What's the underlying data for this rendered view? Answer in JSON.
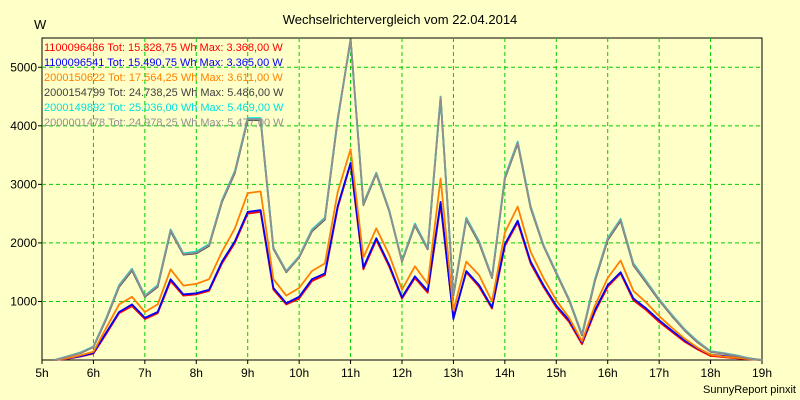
{
  "chart_data": {
    "type": "line",
    "title": "Wechselrichtervergleich vom 22.04.2014",
    "ylabel": "W",
    "footer": "SunnyReport pinxit",
    "xlim": [
      5,
      19
    ],
    "ylim": [
      0,
      5500
    ],
    "x_ticks": [
      {
        "value": 5,
        "label": "5h"
      },
      {
        "value": 6,
        "label": "6h"
      },
      {
        "value": 7,
        "label": "7h"
      },
      {
        "value": 8,
        "label": "8h"
      },
      {
        "value": 9,
        "label": "9h"
      },
      {
        "value": 10,
        "label": "10h"
      },
      {
        "value": 11,
        "label": "11h"
      },
      {
        "value": 12,
        "label": "12h"
      },
      {
        "value": 13,
        "label": "13h"
      },
      {
        "value": 14,
        "label": "14h"
      },
      {
        "value": 15,
        "label": "15h"
      },
      {
        "value": 16,
        "label": "16h"
      },
      {
        "value": 17,
        "label": "17h"
      },
      {
        "value": 18,
        "label": "18h"
      },
      {
        "value": 19,
        "label": "19h"
      }
    ],
    "y_ticks": [
      {
        "value": 1000,
        "label": "1000"
      },
      {
        "value": 2000,
        "label": "2000"
      },
      {
        "value": 3000,
        "label": "3000"
      },
      {
        "value": 4000,
        "label": "4000"
      },
      {
        "value": 5000,
        "label": "5000"
      }
    ],
    "grid": true,
    "legend_position": "top-left",
    "x": [
      5.25,
      5.5,
      5.75,
      6,
      6.25,
      6.5,
      6.75,
      7,
      7.25,
      7.5,
      7.75,
      8,
      8.25,
      8.5,
      8.75,
      9,
      9.25,
      9.5,
      9.75,
      10,
      10.25,
      10.5,
      10.75,
      11,
      11.25,
      11.5,
      11.75,
      12,
      12.25,
      12.5,
      12.75,
      13,
      13.25,
      13.5,
      13.75,
      14,
      14.25,
      14.5,
      14.75,
      15,
      15.25,
      15.5,
      15.75,
      16,
      16.25,
      16.5,
      16.75,
      17,
      17.25,
      17.5,
      17.75,
      18,
      18.25,
      18.5,
      18.75,
      19
    ],
    "series": [
      {
        "name": "1100096436 Tot: 15.328,75 Wh Max: 3.368,00 W",
        "color": "#FF0000",
        "values": [
          0,
          20,
          60,
          110,
          450,
          800,
          920,
          700,
          800,
          1350,
          1100,
          1120,
          1180,
          1650,
          2000,
          2500,
          2530,
          1200,
          950,
          1050,
          1350,
          1450,
          2600,
          3350,
          1550,
          2050,
          1600,
          1050,
          1400,
          1150,
          2650,
          730,
          1500,
          1250,
          880,
          1950,
          2350,
          1650,
          1250,
          900,
          650,
          270,
          820,
          1250,
          1480,
          1020,
          850,
          650,
          480,
          310,
          180,
          70,
          50,
          30,
          10,
          0
        ]
      },
      {
        "name": "1100096541 Tot: 15.490,75 Wh Max: 3.365,00 W",
        "color": "#0000FF",
        "values": [
          0,
          25,
          65,
          120,
          470,
          820,
          950,
          720,
          820,
          1380,
          1120,
          1140,
          1200,
          1680,
          2030,
          2530,
          2560,
          1230,
          970,
          1080,
          1380,
          1480,
          2630,
          3370,
          1580,
          2080,
          1630,
          1070,
          1430,
          1180,
          2700,
          700,
          1520,
          1280,
          900,
          1980,
          2380,
          1680,
          1280,
          930,
          680,
          300,
          850,
          1280,
          1500,
          1050,
          880,
          680,
          500,
          330,
          200,
          90,
          70,
          40,
          15,
          0
        ]
      },
      {
        "name": "2000150622 Tot: 17.564,25 Wh Max: 3.611,00 W",
        "color": "#FF8000",
        "values": [
          0,
          30,
          80,
          140,
          550,
          950,
          1080,
          820,
          950,
          1550,
          1270,
          1300,
          1380,
          1850,
          2250,
          2850,
          2880,
          1380,
          1100,
          1230,
          1520,
          1650,
          2870,
          3600,
          1750,
          2250,
          1800,
          1200,
          1600,
          1300,
          3100,
          850,
          1680,
          1450,
          1000,
          2180,
          2620,
          1850,
          1400,
          1020,
          720,
          320,
          930,
          1400,
          1700,
          1180,
          980,
          750,
          550,
          360,
          210,
          90,
          60,
          40,
          15,
          0
        ]
      },
      {
        "name": "2000154799 Tot: 24.738,25 Wh Max: 5.486,00 W",
        "color": "#404040",
        "values": [
          0,
          60,
          120,
          220,
          700,
          1250,
          1530,
          1080,
          1250,
          2200,
          1800,
          1820,
          1950,
          2700,
          3200,
          4100,
          4100,
          1900,
          1500,
          1750,
          2200,
          2400,
          4100,
          5480,
          2650,
          3180,
          2550,
          1680,
          2300,
          1890,
          4480,
          1100,
          2400,
          2000,
          1400,
          3100,
          3700,
          2600,
          1950,
          1480,
          1020,
          420,
          1350,
          2050,
          2380,
          1620,
          1320,
          1020,
          750,
          500,
          300,
          140,
          110,
          70,
          25,
          0
        ]
      },
      {
        "name": "2000149892 Tot: 25.036,00 Wh Max: 5.469,00 W",
        "color": "#00E0E0",
        "values": [
          0,
          65,
          130,
          230,
          720,
          1280,
          1560,
          1100,
          1280,
          2230,
          1820,
          1850,
          1980,
          2730,
          3230,
          4130,
          4130,
          1920,
          1520,
          1770,
          2230,
          2430,
          4130,
          5450,
          2680,
          3200,
          2570,
          1700,
          2330,
          1910,
          4500,
          1120,
          2430,
          2030,
          1420,
          3130,
          3730,
          2630,
          1970,
          1500,
          1040,
          440,
          1380,
          2080,
          2410,
          1650,
          1350,
          1040,
          770,
          520,
          320,
          150,
          120,
          80,
          30,
          0
        ]
      },
      {
        "name": "2000001478 Tot: 24.978,25 Wh Max: 5.477,00 W",
        "color": "#909090",
        "values": [
          0,
          62,
          125,
          225,
          710,
          1265,
          1545,
          1090,
          1265,
          2215,
          1810,
          1835,
          1965,
          2715,
          3215,
          4115,
          4115,
          1910,
          1510,
          1760,
          2215,
          2415,
          4115,
          5465,
          2665,
          3190,
          2560,
          1690,
          2315,
          1900,
          4490,
          1110,
          2415,
          2015,
          1410,
          3115,
          3715,
          2615,
          1960,
          1490,
          1030,
          430,
          1365,
          2065,
          2395,
          1635,
          1335,
          1030,
          760,
          510,
          310,
          145,
          115,
          75,
          28,
          0
        ]
      }
    ]
  }
}
